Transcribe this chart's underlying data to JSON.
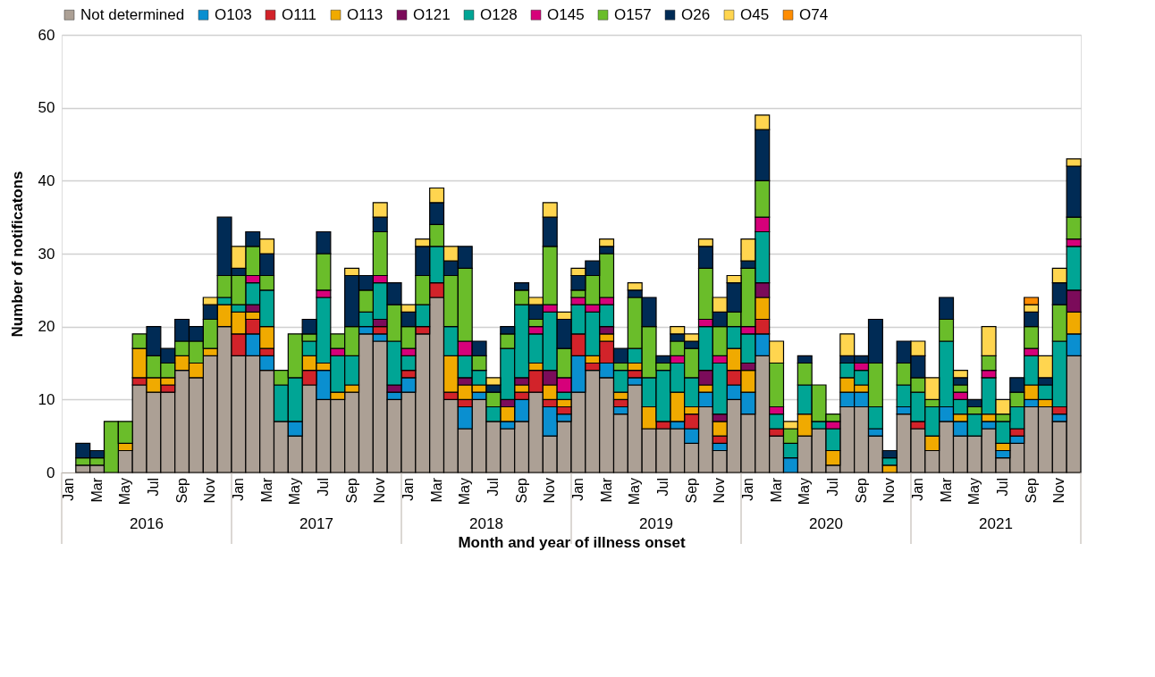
{
  "chart_data": {
    "type": "bar",
    "stacked": true,
    "ylabel": "Number of notificatons",
    "xlabel": "Month and year of illness onset",
    "categories": [
      "Jan",
      null,
      "Mar",
      null,
      "May",
      null,
      "Jul",
      null,
      "Sep",
      null,
      "Nov",
      null,
      "Jan",
      null,
      "Mar",
      null,
      "May",
      null,
      "Jul",
      null,
      "Sep",
      null,
      "Nov",
      null,
      "Jan",
      null,
      "Mar",
      null,
      "May",
      null,
      "Jul",
      null,
      "Sep",
      null,
      "Nov",
      null,
      "Jan",
      null,
      "Mar",
      null,
      "May",
      null,
      "Jul",
      null,
      "Sep",
      null,
      "Nov",
      null,
      "Jan",
      null,
      "Mar",
      null,
      "May",
      null,
      "Jul",
      null,
      "Sep",
      null,
      "Nov",
      null,
      "Jan",
      null,
      "Mar",
      null,
      "May",
      null,
      "Jul",
      null,
      "Sep",
      null,
      "Nov",
      null
    ],
    "annotations": [
      "2016",
      "2017",
      "2018",
      "2019",
      "2020",
      "2021"
    ],
    "ylim": [
      0,
      60
    ],
    "yticks": [
      0,
      10,
      20,
      30,
      40,
      50,
      60
    ],
    "grid": "y",
    "legend": "top",
    "series": [
      {
        "name": "Not determined",
        "color": "#aca095",
        "values": [
          0,
          1,
          1,
          0,
          3,
          12,
          11,
          11,
          14,
          13,
          16,
          20,
          16,
          16,
          14,
          7,
          5,
          12,
          10,
          10,
          11,
          19,
          18,
          10,
          11,
          19,
          24,
          10,
          6,
          10,
          7,
          6,
          7,
          11,
          5,
          7,
          11,
          14,
          13,
          8,
          12,
          6,
          6,
          6,
          4,
          9,
          3,
          10,
          8,
          16,
          5,
          0,
          5,
          6,
          1,
          9,
          9,
          5,
          0,
          8,
          6,
          3,
          7,
          5,
          5,
          6,
          2,
          4,
          9,
          9,
          7,
          16
        ]
      },
      {
        "name": "O103",
        "color": "#0a8fd0",
        "values": [
          0,
          0,
          0,
          0,
          0,
          0,
          0,
          0,
          0,
          0,
          0,
          0,
          0,
          3,
          2,
          0,
          2,
          0,
          4,
          0,
          0,
          1,
          1,
          1,
          2,
          0,
          0,
          0,
          3,
          1,
          0,
          1,
          3,
          0,
          4,
          1,
          5,
          0,
          2,
          1,
          1,
          0,
          0,
          1,
          2,
          2,
          1,
          2,
          3,
          3,
          0,
          2,
          0,
          0,
          0,
          2,
          2,
          1,
          0,
          1,
          0,
          0,
          2,
          2,
          0,
          1,
          1,
          1,
          1,
          0,
          1,
          3
        ]
      },
      {
        "name": "O111",
        "color": "#d2232a",
        "values": [
          0,
          0,
          0,
          0,
          0,
          1,
          0,
          1,
          0,
          0,
          0,
          0,
          3,
          2,
          1,
          0,
          0,
          2,
          0,
          0,
          0,
          0,
          1,
          0,
          1,
          1,
          2,
          1,
          1,
          0,
          0,
          0,
          1,
          3,
          1,
          1,
          3,
          1,
          3,
          1,
          1,
          0,
          1,
          0,
          2,
          0,
          1,
          2,
          0,
          2,
          1,
          0,
          0,
          0,
          0,
          0,
          0,
          0,
          0,
          0,
          1,
          0,
          0,
          0,
          0,
          0,
          0,
          1,
          0,
          0,
          1,
          0
        ]
      },
      {
        "name": "O113",
        "color": "#f0aa00",
        "values": [
          0,
          0,
          0,
          0,
          1,
          4,
          2,
          1,
          2,
          2,
          1,
          3,
          3,
          1,
          3,
          0,
          0,
          2,
          1,
          1,
          1,
          0,
          0,
          0,
          0,
          0,
          0,
          5,
          2,
          1,
          0,
          2,
          1,
          1,
          2,
          1,
          0,
          1,
          1,
          1,
          1,
          3,
          0,
          4,
          1,
          1,
          2,
          3,
          3,
          3,
          0,
          0,
          3,
          0,
          2,
          2,
          1,
          0,
          1,
          0,
          0,
          2,
          0,
          1,
          0,
          1,
          1,
          0,
          2,
          1,
          0,
          3
        ]
      },
      {
        "name": "O121",
        "color": "#7b0b5a",
        "values": [
          0,
          0,
          0,
          0,
          0,
          0,
          0,
          0,
          0,
          0,
          0,
          0,
          0,
          1,
          0,
          0,
          0,
          0,
          0,
          0,
          0,
          0,
          1,
          1,
          0,
          0,
          0,
          0,
          1,
          0,
          0,
          1,
          1,
          0,
          2,
          0,
          0,
          0,
          1,
          0,
          0,
          0,
          0,
          0,
          0,
          2,
          1,
          0,
          1,
          2,
          0,
          0,
          0,
          0,
          0,
          0,
          0,
          0,
          0,
          0,
          0,
          0,
          0,
          0,
          0,
          0,
          0,
          0,
          0,
          0,
          0,
          3
        ]
      },
      {
        "name": "O128",
        "color": "#00a595",
        "values": [
          0,
          0,
          0,
          0,
          0,
          0,
          0,
          0,
          0,
          0,
          0,
          1,
          1,
          3,
          5,
          5,
          6,
          2,
          9,
          5,
          4,
          2,
          5,
          6,
          2,
          3,
          5,
          4,
          3,
          2,
          2,
          7,
          10,
          4,
          8,
          1,
          4,
          6,
          3,
          3,
          2,
          4,
          7,
          4,
          4,
          6,
          7,
          3,
          4,
          7,
          2,
          2,
          4,
          1,
          3,
          2,
          2,
          3,
          1,
          3,
          4,
          4,
          9,
          2,
          3,
          5,
          3,
          3,
          4,
          2,
          9,
          6
        ]
      },
      {
        "name": "O145",
        "color": "#d6007a",
        "values": [
          0,
          0,
          0,
          0,
          0,
          0,
          0,
          0,
          0,
          0,
          0,
          0,
          0,
          1,
          0,
          0,
          0,
          0,
          1,
          1,
          0,
          0,
          1,
          0,
          1,
          0,
          0,
          0,
          2,
          0,
          0,
          0,
          0,
          1,
          1,
          2,
          1,
          1,
          1,
          0,
          0,
          0,
          0,
          1,
          0,
          1,
          1,
          0,
          1,
          2,
          1,
          0,
          0,
          0,
          1,
          0,
          1,
          0,
          0,
          0,
          0,
          0,
          0,
          1,
          0,
          1,
          0,
          0,
          1,
          0,
          0,
          1
        ]
      },
      {
        "name": "O157",
        "color": "#6abd2a",
        "values": [
          0,
          1,
          1,
          7,
          3,
          2,
          3,
          2,
          2,
          3,
          4,
          3,
          4,
          4,
          2,
          2,
          6,
          1,
          5,
          2,
          4,
          3,
          6,
          5,
          3,
          4,
          3,
          7,
          10,
          2,
          2,
          2,
          2,
          1,
          8,
          4,
          1,
          4,
          6,
          1,
          7,
          7,
          1,
          2,
          4,
          7,
          4,
          2,
          8,
          5,
          6,
          2,
          3,
          5,
          1,
          0,
          0,
          6,
          0,
          3,
          2,
          1,
          3,
          1,
          1,
          2,
          1,
          2,
          3,
          0,
          5,
          3
        ]
      },
      {
        "name": "O26",
        "color": "#002b55",
        "values": [
          0,
          2,
          1,
          0,
          0,
          0,
          4,
          2,
          3,
          2,
          2,
          8,
          1,
          2,
          3,
          0,
          0,
          2,
          3,
          0,
          7,
          2,
          2,
          3,
          2,
          4,
          3,
          2,
          3,
          2,
          1,
          1,
          1,
          2,
          4,
          4,
          2,
          2,
          1,
          2,
          1,
          4,
          1,
          1,
          1,
          3,
          2,
          4,
          1,
          7,
          0,
          0,
          1,
          0,
          0,
          1,
          1,
          6,
          1,
          3,
          3,
          0,
          3,
          1,
          1,
          0,
          0,
          2,
          2,
          1,
          3,
          7
        ]
      },
      {
        "name": "O45",
        "color": "#ffd54f",
        "values": [
          0,
          0,
          0,
          0,
          0,
          0,
          0,
          0,
          0,
          0,
          1,
          0,
          3,
          0,
          2,
          0,
          0,
          0,
          0,
          0,
          1,
          0,
          2,
          0,
          1,
          1,
          2,
          2,
          0,
          0,
          1,
          0,
          0,
          1,
          2,
          1,
          1,
          0,
          1,
          0,
          1,
          0,
          0,
          1,
          1,
          1,
          2,
          1,
          3,
          2,
          3,
          1,
          0,
          0,
          0,
          3,
          0,
          0,
          0,
          0,
          2,
          3,
          0,
          1,
          0,
          4,
          2,
          0,
          1,
          3,
          2,
          1
        ]
      },
      {
        "name": "O74",
        "color": "#ff8c00",
        "values": [
          0,
          0,
          0,
          0,
          0,
          0,
          0,
          0,
          0,
          0,
          0,
          0,
          0,
          0,
          0,
          0,
          0,
          0,
          0,
          0,
          0,
          0,
          0,
          0,
          0,
          0,
          0,
          0,
          0,
          0,
          0,
          0,
          0,
          0,
          0,
          0,
          0,
          0,
          0,
          0,
          0,
          0,
          0,
          0,
          0,
          0,
          0,
          0,
          0,
          0,
          0,
          0,
          0,
          0,
          0,
          0,
          0,
          0,
          0,
          0,
          0,
          0,
          0,
          0,
          0,
          0,
          0,
          0,
          1,
          0,
          0,
          0
        ]
      }
    ]
  }
}
